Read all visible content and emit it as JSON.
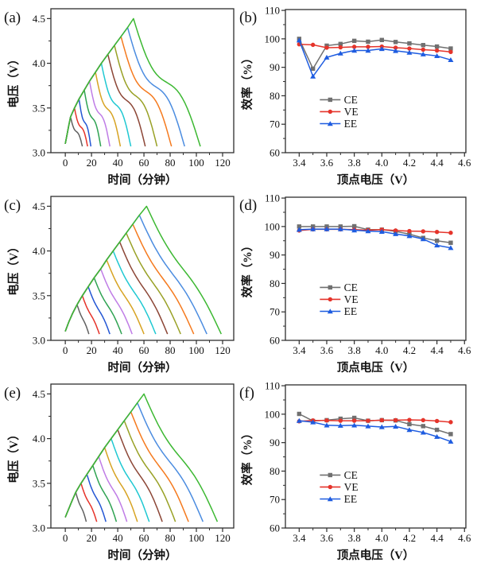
{
  "page": {
    "background": "#ffffff",
    "axis_color": "#2e2e2e"
  },
  "chart_data": [
    {
      "panel": "(a)",
      "type": "line",
      "kind": "profile",
      "xlabel": "时间（分钟）",
      "ylabel": "电压（V）",
      "xlim": [
        -11,
        128.5
      ],
      "ylim": [
        3.0,
        4.61
      ],
      "xtick_pos": [
        0,
        20,
        40,
        60,
        80,
        100,
        120
      ],
      "xtick_labels": [
        "0",
        "20",
        "40",
        "60",
        "80",
        "100",
        "120"
      ],
      "xtick_minor": [
        10,
        30,
        50,
        70,
        90,
        110
      ],
      "ytick_pos": [
        3.0,
        3.5,
        4.0,
        4.5
      ],
      "ytick_labels": [
        "3.0",
        "3.5",
        "4.0",
        "4.5"
      ],
      "ytick_minor": [
        3.25,
        3.75,
        4.25
      ],
      "grid": false,
      "v_end": 3.07,
      "s_amp": 0.11,
      "envelope": [
        [
          0,
          3.1
        ],
        [
          1.3,
          3.2
        ],
        [
          2.6,
          3.3
        ],
        [
          4,
          3.4
        ],
        [
          7,
          3.5
        ],
        [
          10.5,
          3.6
        ],
        [
          14.5,
          3.7
        ],
        [
          18.5,
          3.8
        ],
        [
          23,
          3.9
        ],
        [
          27.5,
          4.0
        ],
        [
          32.5,
          4.1
        ],
        [
          37.5,
          4.2
        ],
        [
          42.5,
          4.3
        ],
        [
          47.5,
          4.4
        ],
        [
          52,
          4.5
        ]
      ],
      "peaks": [
        3.4,
        3.5,
        3.6,
        3.7,
        3.8,
        3.9,
        4.0,
        4.1,
        4.2,
        4.3,
        4.4,
        4.5
      ],
      "ends": [
        13,
        17,
        19.5,
        27,
        34,
        42,
        50,
        61,
        70,
        81,
        91,
        103
      ],
      "colors": [
        "#606060",
        "#e63229",
        "#2356d4",
        "#2fa352",
        "#bf7ce6",
        "#d7a322",
        "#1fc8d2",
        "#8c4636",
        "#99a126",
        "#f57a1e",
        "#4b8ce0",
        "#3cb832"
      ]
    },
    {
      "panel": "(b)",
      "type": "line",
      "kind": "efficiency",
      "xlabel": "顶点电压（V）",
      "ylabel": "效率（%）",
      "xlim": [
        3.3,
        4.61
      ],
      "ylim": [
        60,
        110.3
      ],
      "xtick_pos": [
        3.4,
        3.6,
        3.8,
        4.0,
        4.2,
        4.4,
        4.6
      ],
      "xtick_labels": [
        "3.4",
        "3.6",
        "3.8",
        "4.0",
        "4.2",
        "4.4",
        "4.6"
      ],
      "xtick_minor": [
        3.5,
        3.7,
        3.9,
        4.1,
        4.3,
        4.5
      ],
      "ytick_pos": [
        60,
        70,
        80,
        90,
        100,
        110
      ],
      "ytick_labels": [
        "60",
        "70",
        "80",
        "90",
        "100",
        "110"
      ],
      "ytick_minor": [
        65,
        75,
        85,
        95,
        105
      ],
      "grid": false,
      "x": [
        3.4,
        3.5,
        3.6,
        3.7,
        3.8,
        3.9,
        4.0,
        4.1,
        4.2,
        4.3,
        4.4,
        4.5
      ],
      "series": [
        {
          "name": "CE",
          "color": "#707070",
          "marker": "square",
          "values": [
            100.0,
            89.5,
            97.6,
            98.2,
            99.3,
            99.0,
            99.6,
            98.9,
            98.4,
            97.8,
            97.3,
            96.6
          ]
        },
        {
          "name": "VE",
          "color": "#e5342b",
          "marker": "circle",
          "values": [
            98.1,
            97.9,
            96.9,
            97.0,
            97.2,
            97.2,
            97.3,
            96.9,
            96.6,
            96.2,
            95.9,
            95.4
          ]
        },
        {
          "name": "EE",
          "color": "#1e5ce0",
          "marker": "triangle",
          "values": [
            99.5,
            86.8,
            93.5,
            94.9,
            95.9,
            95.9,
            96.5,
            95.8,
            95.2,
            94.6,
            94.0,
            92.6
          ]
        }
      ],
      "legend": {
        "x_line": [
          3.55,
          3.7
        ],
        "x_text": 3.725,
        "rows_y": [
          78.6,
          74.4,
          70.2
        ],
        "position": "inside-lower-left"
      }
    },
    {
      "panel": "(c)",
      "type": "line",
      "kind": "profile",
      "xlabel": "时间（分钟）",
      "ylabel": "电压（V）",
      "xlim": [
        -11,
        128.5
      ],
      "ylim": [
        3.0,
        4.61
      ],
      "xtick_pos": [
        0,
        20,
        40,
        60,
        80,
        100,
        120
      ],
      "xtick_labels": [
        "0",
        "20",
        "40",
        "60",
        "80",
        "100",
        "120"
      ],
      "xtick_minor": [
        10,
        30,
        50,
        70,
        90,
        110
      ],
      "ytick_pos": [
        3.0,
        3.5,
        4.0,
        4.5
      ],
      "ytick_labels": [
        "3.0",
        "3.5",
        "4.0",
        "4.5"
      ],
      "ytick_minor": [
        3.25,
        3.75,
        4.25
      ],
      "grid": false,
      "v_end": 3.07,
      "s_amp": 0.04,
      "envelope": [
        [
          0,
          3.1
        ],
        [
          2.5,
          3.2
        ],
        [
          5.5,
          3.3
        ],
        [
          9,
          3.4
        ],
        [
          13,
          3.5
        ],
        [
          17.5,
          3.6
        ],
        [
          22,
          3.7
        ],
        [
          27,
          3.8
        ],
        [
          31.5,
          3.9
        ],
        [
          36.5,
          4.0
        ],
        [
          41.5,
          4.1
        ],
        [
          46.5,
          4.2
        ],
        [
          51.5,
          4.3
        ],
        [
          56.5,
          4.4
        ],
        [
          62,
          4.5
        ]
      ],
      "peaks": [
        3.4,
        3.5,
        3.6,
        3.7,
        3.8,
        3.9,
        4.0,
        4.1,
        4.2,
        4.3,
        4.4,
        4.5
      ],
      "ends": [
        18,
        26,
        34,
        43,
        51,
        60,
        69,
        78,
        88,
        98,
        108,
        119
      ],
      "colors": [
        "#606060",
        "#e63229",
        "#2356d4",
        "#2fa352",
        "#bf7ce6",
        "#d7a322",
        "#1fc8d2",
        "#8c4636",
        "#99a126",
        "#f57a1e",
        "#4b8ce0",
        "#3cb832"
      ]
    },
    {
      "panel": "(d)",
      "type": "line",
      "kind": "efficiency",
      "xlabel": "顶点电压（V）",
      "ylabel": "效率（%）",
      "xlim": [
        3.3,
        4.61
      ],
      "ylim": [
        60,
        110.3
      ],
      "xtick_pos": [
        3.4,
        3.6,
        3.8,
        4.0,
        4.2,
        4.4,
        4.6
      ],
      "xtick_labels": [
        "3.4",
        "3.6",
        "3.8",
        "4.0",
        "4.2",
        "4.4",
        "4.6"
      ],
      "xtick_minor": [
        3.5,
        3.7,
        3.9,
        4.1,
        4.3,
        4.5
      ],
      "ytick_pos": [
        60,
        70,
        80,
        90,
        100,
        110
      ],
      "ytick_labels": [
        "60",
        "70",
        "80",
        "90",
        "100",
        "110"
      ],
      "ytick_minor": [
        65,
        75,
        85,
        95,
        105
      ],
      "grid": false,
      "x": [
        3.4,
        3.5,
        3.6,
        3.7,
        3.8,
        3.9,
        4.0,
        4.1,
        4.2,
        4.3,
        4.4,
        4.5
      ],
      "series": [
        {
          "name": "CE",
          "color": "#707070",
          "marker": "square",
          "values": [
            100.0,
            100.0,
            100.0,
            100.0,
            100.1,
            98.9,
            98.9,
            98.3,
            97.3,
            96.0,
            95.0,
            94.3
          ]
        },
        {
          "name": "VE",
          "color": "#e5342b",
          "marker": "circle",
          "values": [
            98.6,
            99.0,
            99.0,
            99.0,
            98.9,
            98.7,
            98.9,
            98.6,
            98.4,
            98.3,
            98.1,
            97.8
          ]
        },
        {
          "name": "EE",
          "color": "#1e5ce0",
          "marker": "triangle",
          "values": [
            98.9,
            99.1,
            99.1,
            99.1,
            98.7,
            98.4,
            98.2,
            97.4,
            96.7,
            95.6,
            93.4,
            92.5
          ]
        }
      ],
      "legend": {
        "x_line": [
          3.55,
          3.7
        ],
        "x_text": 3.725,
        "rows_y": [
          78.6,
          74.4,
          70.2
        ],
        "position": "inside-lower-left"
      }
    },
    {
      "panel": "(e)",
      "type": "line",
      "kind": "profile",
      "xlabel": "时间（分钟）",
      "ylabel": "电压（V）",
      "xlim": [
        -11,
        128.5
      ],
      "ylim": [
        3.0,
        4.61
      ],
      "xtick_pos": [
        0,
        20,
        40,
        60,
        80,
        100,
        120
      ],
      "xtick_labels": [
        "0",
        "20",
        "40",
        "60",
        "80",
        "100",
        "120"
      ],
      "xtick_minor": [
        10,
        30,
        50,
        70,
        90,
        110
      ],
      "ytick_pos": [
        3.0,
        3.5,
        4.0,
        4.5
      ],
      "ytick_labels": [
        "3.0",
        "3.5",
        "4.0",
        "4.5"
      ],
      "ytick_minor": [
        3.25,
        3.75,
        4.25
      ],
      "grid": false,
      "v_end": 3.07,
      "s_amp": 0.05,
      "envelope": [
        [
          0,
          3.12
        ],
        [
          2.2,
          3.2
        ],
        [
          5,
          3.3
        ],
        [
          8,
          3.4
        ],
        [
          12,
          3.5
        ],
        [
          16.5,
          3.6
        ],
        [
          21,
          3.7
        ],
        [
          25.5,
          3.8
        ],
        [
          30,
          3.9
        ],
        [
          35,
          4.0
        ],
        [
          40,
          4.1
        ],
        [
          45,
          4.2
        ],
        [
          50,
          4.3
        ],
        [
          55,
          4.4
        ],
        [
          60,
          4.5
        ]
      ],
      "peaks": [
        3.4,
        3.5,
        3.6,
        3.7,
        3.8,
        3.9,
        4.0,
        4.1,
        4.2,
        4.3,
        4.4,
        4.5
      ],
      "ends": [
        16,
        24,
        31,
        39,
        47,
        55,
        64,
        74,
        84,
        94,
        105,
        116
      ],
      "colors": [
        "#606060",
        "#e63229",
        "#2356d4",
        "#2fa352",
        "#bf7ce6",
        "#d7a322",
        "#1fc8d2",
        "#8c4636",
        "#99a126",
        "#f57a1e",
        "#4b8ce0",
        "#3cb832"
      ]
    },
    {
      "panel": "(f)",
      "type": "line",
      "kind": "efficiency",
      "xlabel": "顶点电压（V）",
      "ylabel": "效率（%）",
      "xlim": [
        3.3,
        4.61
      ],
      "ylim": [
        60,
        110.3
      ],
      "xtick_pos": [
        3.4,
        3.6,
        3.8,
        4.0,
        4.2,
        4.4,
        4.6
      ],
      "xtick_labels": [
        "3.4",
        "3.6",
        "3.8",
        "4.0",
        "4.2",
        "4.4",
        "4.6"
      ],
      "xtick_minor": [
        3.5,
        3.7,
        3.9,
        4.1,
        4.3,
        4.5
      ],
      "ytick_pos": [
        60,
        70,
        80,
        90,
        100,
        110
      ],
      "ytick_labels": [
        "60",
        "70",
        "80",
        "90",
        "100",
        "110"
      ],
      "ytick_minor": [
        65,
        75,
        85,
        95,
        105
      ],
      "grid": false,
      "x": [
        3.4,
        3.5,
        3.6,
        3.7,
        3.8,
        3.9,
        4.0,
        4.1,
        4.2,
        4.3,
        4.4,
        4.5
      ],
      "series": [
        {
          "name": "CE",
          "color": "#707070",
          "marker": "square",
          "values": [
            100.1,
            97.6,
            97.9,
            98.4,
            98.7,
            97.7,
            97.9,
            97.8,
            96.5,
            95.8,
            94.5,
            93.0
          ]
        },
        {
          "name": "VE",
          "color": "#e5342b",
          "marker": "circle",
          "values": [
            97.5,
            97.8,
            97.8,
            97.7,
            97.7,
            97.7,
            97.9,
            97.9,
            98.0,
            97.9,
            97.6,
            97.2
          ]
        },
        {
          "name": "EE",
          "color": "#1e5ce0",
          "marker": "triangle",
          "values": [
            97.7,
            97.2,
            96.1,
            96.0,
            96.1,
            95.8,
            95.5,
            95.7,
            94.5,
            93.6,
            92.1,
            90.4
          ]
        }
      ],
      "legend": {
        "x_line": [
          3.55,
          3.7
        ],
        "x_text": 3.725,
        "rows_y": [
          78.6,
          74.4,
          70.2
        ],
        "position": "inside-lower-left"
      }
    }
  ]
}
